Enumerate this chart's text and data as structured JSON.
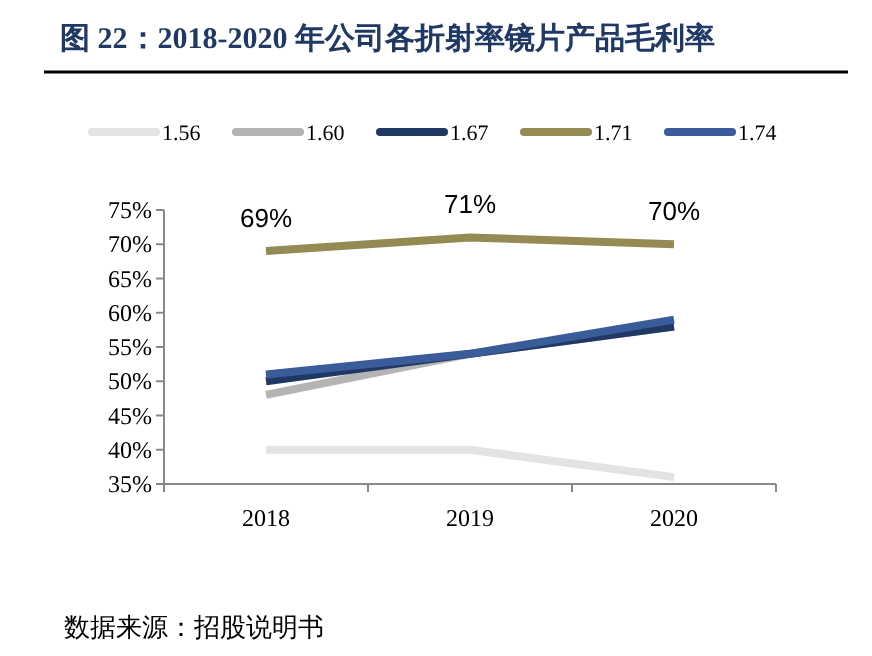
{
  "chart_data": {
    "type": "line",
    "title": "图 22：2018-2020 年公司各折射率镜片产品毛利率",
    "categories": [
      "2018",
      "2019",
      "2020"
    ],
    "series": [
      {
        "name": "1.56",
        "color": "#e3e3e3",
        "values": [
          40,
          40,
          36
        ]
      },
      {
        "name": "1.60",
        "color": "#b4b4b4",
        "values": [
          48,
          54,
          58
        ]
      },
      {
        "name": "1.67",
        "color": "#1f3864",
        "values": [
          50,
          54,
          58
        ]
      },
      {
        "name": "1.71",
        "color": "#948a54",
        "values": [
          69,
          71,
          70
        ],
        "value_labels": [
          "69%",
          "71%",
          "70%"
        ]
      },
      {
        "name": "1.74",
        "color": "#3b5c9a",
        "values": [
          51,
          54,
          59
        ]
      }
    ],
    "ylim": [
      35,
      75
    ],
    "yticks": [
      {
        "value": 35,
        "label": "35%"
      },
      {
        "value": 40,
        "label": "40%"
      },
      {
        "value": 45,
        "label": "45%"
      },
      {
        "value": 50,
        "label": "50%"
      },
      {
        "value": 55,
        "label": "55%"
      },
      {
        "value": 60,
        "label": "60%"
      },
      {
        "value": 65,
        "label": "65%"
      },
      {
        "value": 70,
        "label": "70%"
      },
      {
        "value": 75,
        "label": "75%"
      }
    ],
    "grid": false,
    "legend": "top",
    "marker": "none",
    "line_style": "solid",
    "annotations": [
      "数据来源：招股说明书"
    ]
  }
}
